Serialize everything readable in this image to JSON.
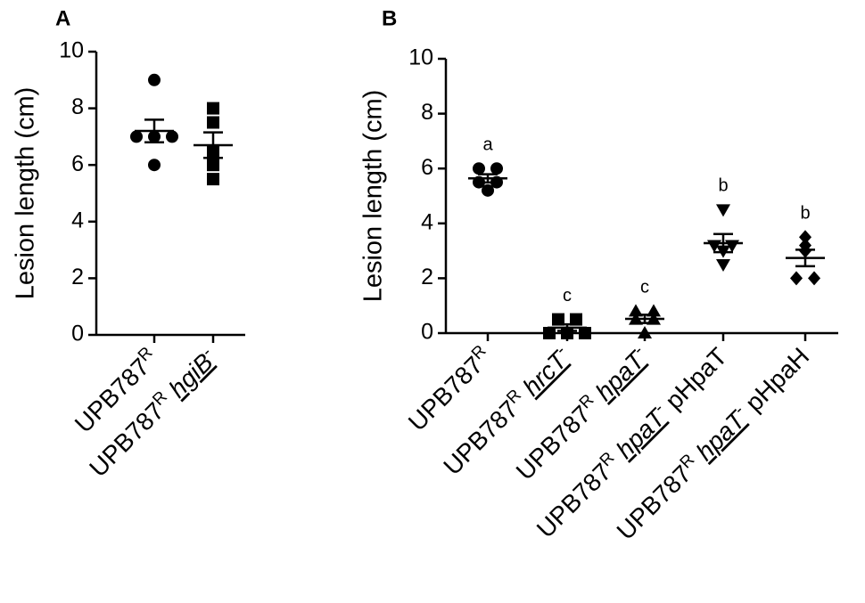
{
  "chart_data": [
    {
      "type": "dotplot",
      "panel": "A",
      "y_label": "Lesion length (cm)",
      "ylim": [
        0,
        10
      ],
      "yticks": [
        0,
        2,
        4,
        6,
        8,
        10
      ],
      "color": "#000000",
      "categories": [
        [
          {
            "text": "UPB787"
          },
          {
            "text": "R",
            "sup": true
          }
        ],
        [
          {
            "text": "UPB787"
          },
          {
            "text": "R",
            "sup": true
          },
          {
            "text": " "
          },
          {
            "text": "hgiB",
            "italic": true
          },
          {
            "text": "-",
            "sup": true
          }
        ]
      ],
      "groups": [
        {
          "marker": "circle",
          "values": [
            9,
            7,
            7,
            6,
            7
          ],
          "mean": 7.2,
          "sem": 0.4
        },
        {
          "marker": "square",
          "values": [
            8,
            7.5,
            6.5,
            6,
            5.5
          ],
          "mean": 6.7,
          "sem": 0.45
        }
      ]
    },
    {
      "type": "dotplot",
      "panel": "B",
      "y_label": "Lesion length (cm)",
      "ylim": [
        0,
        10
      ],
      "yticks": [
        0,
        2,
        4,
        6,
        8,
        10
      ],
      "color": "#000000",
      "categories": [
        [
          {
            "text": "UPB787"
          },
          {
            "text": "R",
            "sup": true
          }
        ],
        [
          {
            "text": "UPB787"
          },
          {
            "text": "R",
            "sup": true
          },
          {
            "text": " "
          },
          {
            "text": "hrcT",
            "italic": true
          },
          {
            "text": "-",
            "sup": true
          }
        ],
        [
          {
            "text": "UPB787"
          },
          {
            "text": "R",
            "sup": true
          },
          {
            "text": " "
          },
          {
            "text": "hpaT",
            "italic": true
          },
          {
            "text": "-",
            "sup": true
          }
        ],
        [
          {
            "text": "UPB787"
          },
          {
            "text": "R",
            "sup": true
          },
          {
            "text": " "
          },
          {
            "text": "hpaT",
            "italic": true
          },
          {
            "text": "-",
            "sup": true
          },
          {
            "text": " pHpaT"
          }
        ],
        [
          {
            "text": "UPB787"
          },
          {
            "text": "R",
            "sup": true
          },
          {
            "text": " "
          },
          {
            "text": "hpaT",
            "italic": true
          },
          {
            "text": "-",
            "sup": true
          },
          {
            "text": " pHpaH"
          }
        ]
      ],
      "groups": [
        {
          "marker": "circle",
          "values": [
            6.0,
            6.0,
            5.5,
            5.5,
            5.2
          ],
          "mean": 5.64,
          "sem": 0.15,
          "letter": "a"
        },
        {
          "marker": "square",
          "values": [
            0.5,
            0.5,
            0,
            0,
            0
          ],
          "mean": 0.2,
          "sem": 0.12,
          "letter": "c"
        },
        {
          "marker": "triangle",
          "values": [
            0.8,
            0.8,
            0.5,
            0.5,
            0
          ],
          "mean": 0.52,
          "sem": 0.15,
          "letter": "c"
        },
        {
          "marker": "triangle-down",
          "values": [
            4.5,
            3.2,
            3.2,
            3.0,
            2.5
          ],
          "mean": 3.28,
          "sem": 0.33,
          "letter": "b"
        },
        {
          "marker": "diamond",
          "values": [
            3.5,
            3.2,
            3.0,
            2.0,
            2.0
          ],
          "mean": 2.74,
          "sem": 0.3,
          "letter": "b"
        }
      ]
    }
  ]
}
